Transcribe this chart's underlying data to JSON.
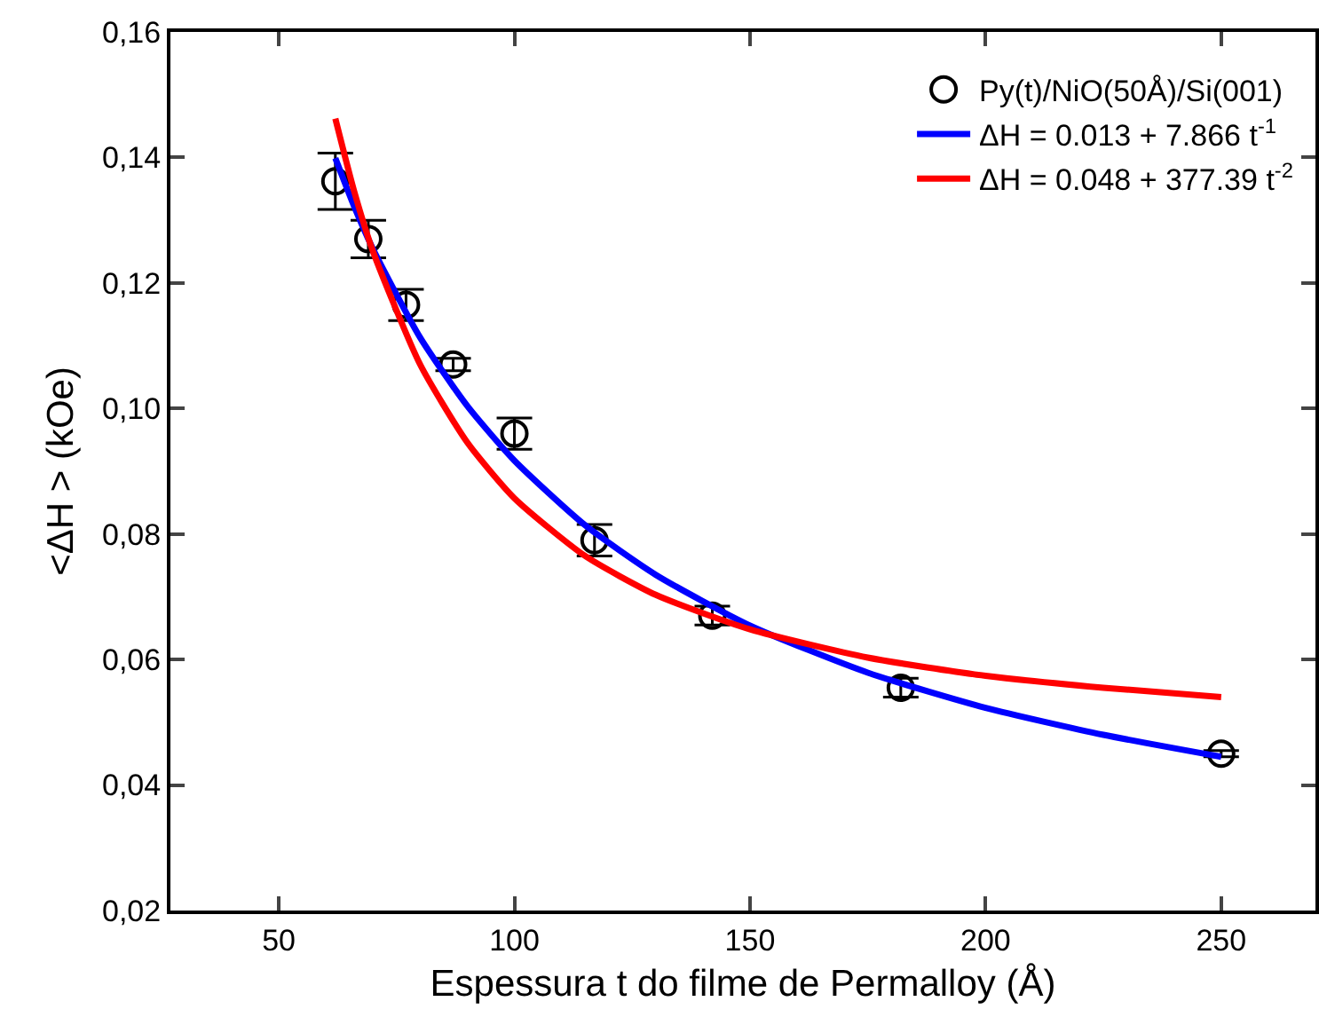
{
  "chart_data": {
    "type": "scatter",
    "xlabel": "Espessura t do filme de Permalloy (Å)",
    "ylabel": "<ΔH > (kOe)",
    "xlim": [
      27,
      270
    ],
    "xticks": [
      50,
      100,
      150,
      200,
      250
    ],
    "ylim": [
      0.02,
      0.16
    ],
    "yticks": [
      {
        "value": 0.02,
        "label": "0,02"
      },
      {
        "value": 0.04,
        "label": "0,04"
      },
      {
        "value": 0.06,
        "label": "0,06"
      },
      {
        "value": 0.08,
        "label": "0,08"
      },
      {
        "value": 0.1,
        "label": "0,10"
      },
      {
        "value": 0.12,
        "label": "0,12"
      },
      {
        "value": 0.14,
        "label": "0,14"
      },
      {
        "value": 0.16,
        "label": "0,16"
      }
    ],
    "grid": false,
    "legend": "top right",
    "series": [
      {
        "name": "Py(t)/NiO(50Å)/Si(001)",
        "color": "#000000",
        "marker": "circle",
        "x": [
          62,
          69,
          77,
          87,
          100,
          117,
          142,
          182,
          250
        ],
        "values": [
          0.1362,
          0.127,
          0.1165,
          0.107,
          0.096,
          0.079,
          0.067,
          0.0555,
          0.045
        ],
        "errors": [
          0.0045,
          0.003,
          0.0025,
          0.001,
          0.0025,
          0.0025,
          0.0015,
          0.0015,
          0.0005
        ]
      },
      {
        "name": "ΔH = 0.013 + 7.866 t$^{-1}$",
        "type": "line",
        "marker": "none",
        "color": "#0000ff",
        "x": [
          62,
          66,
          70,
          80,
          90,
          100,
          115,
          130,
          150,
          175,
          200,
          225,
          250
        ],
        "values": [
          0.1399,
          0.1322,
          0.1254,
          0.1113,
          0.1004,
          0.0917,
          0.0814,
          0.0735,
          0.0654,
          0.0579,
          0.0523,
          0.048,
          0.0445
        ]
      },
      {
        "name": "ΔH = 0.048 + 377.39 t$^{-2}$",
        "type": "line",
        "marker": "none",
        "color": "#ff0000",
        "x": [
          62,
          66,
          70,
          80,
          90,
          100,
          115,
          130,
          150,
          175,
          200,
          225,
          250
        ],
        "values": [
          0.1462,
          0.1346,
          0.125,
          0.107,
          0.0946,
          0.0857,
          0.0765,
          0.0703,
          0.0648,
          0.0603,
          0.0574,
          0.0555,
          0.054
        ]
      }
    ]
  }
}
